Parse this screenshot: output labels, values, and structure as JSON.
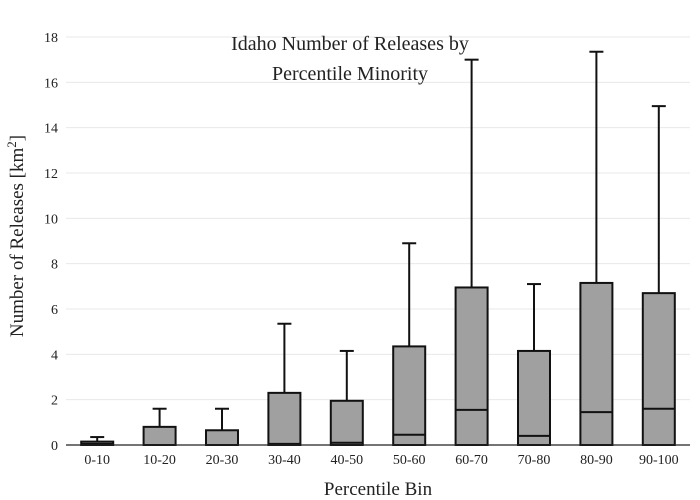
{
  "chart_data": {
    "type": "box",
    "title_lines": [
      "Idaho Number of Releases by",
      "Percentile Minority"
    ],
    "xlabel": "Percentile Bin",
    "ylabel_main": "Number of Releases  [km",
    "ylabel_sup": "2",
    "ylabel_end": "]",
    "ylim": [
      0,
      18
    ],
    "yticks": [
      0,
      2,
      4,
      6,
      8,
      10,
      12,
      14,
      16,
      18
    ],
    "grid": true,
    "categories": [
      "0-10",
      "10-20",
      "20-30",
      "30-40",
      "40-50",
      "50-60",
      "60-70",
      "70-80",
      "80-90",
      "90-100"
    ],
    "boxes": [
      {
        "min": 0,
        "q1": 0,
        "median": 0.05,
        "q3": 0.15,
        "max": 0.35
      },
      {
        "min": 0,
        "q1": 0,
        "median": 0,
        "q3": 0.8,
        "max": 1.6
      },
      {
        "min": 0,
        "q1": 0,
        "median": 0,
        "q3": 0.65,
        "max": 1.6
      },
      {
        "min": 0,
        "q1": 0,
        "median": 0.05,
        "q3": 2.3,
        "max": 5.35
      },
      {
        "min": 0,
        "q1": 0,
        "median": 0.1,
        "q3": 1.95,
        "max": 4.15
      },
      {
        "min": 0,
        "q1": 0,
        "median": 0.45,
        "q3": 4.35,
        "max": 8.9
      },
      {
        "min": 0,
        "q1": 0,
        "median": 1.55,
        "q3": 6.95,
        "max": 17.0
      },
      {
        "min": 0,
        "q1": 0,
        "median": 0.4,
        "q3": 4.15,
        "max": 7.1
      },
      {
        "min": 0,
        "q1": 0,
        "median": 1.45,
        "q3": 7.15,
        "max": 17.35
      },
      {
        "min": 0,
        "q1": 0,
        "median": 1.6,
        "q3": 6.7,
        "max": 14.95
      }
    ],
    "colors": {
      "box_fill": "#a0a0a0",
      "stroke": "#111111",
      "grid": "#e8e8e8"
    }
  }
}
